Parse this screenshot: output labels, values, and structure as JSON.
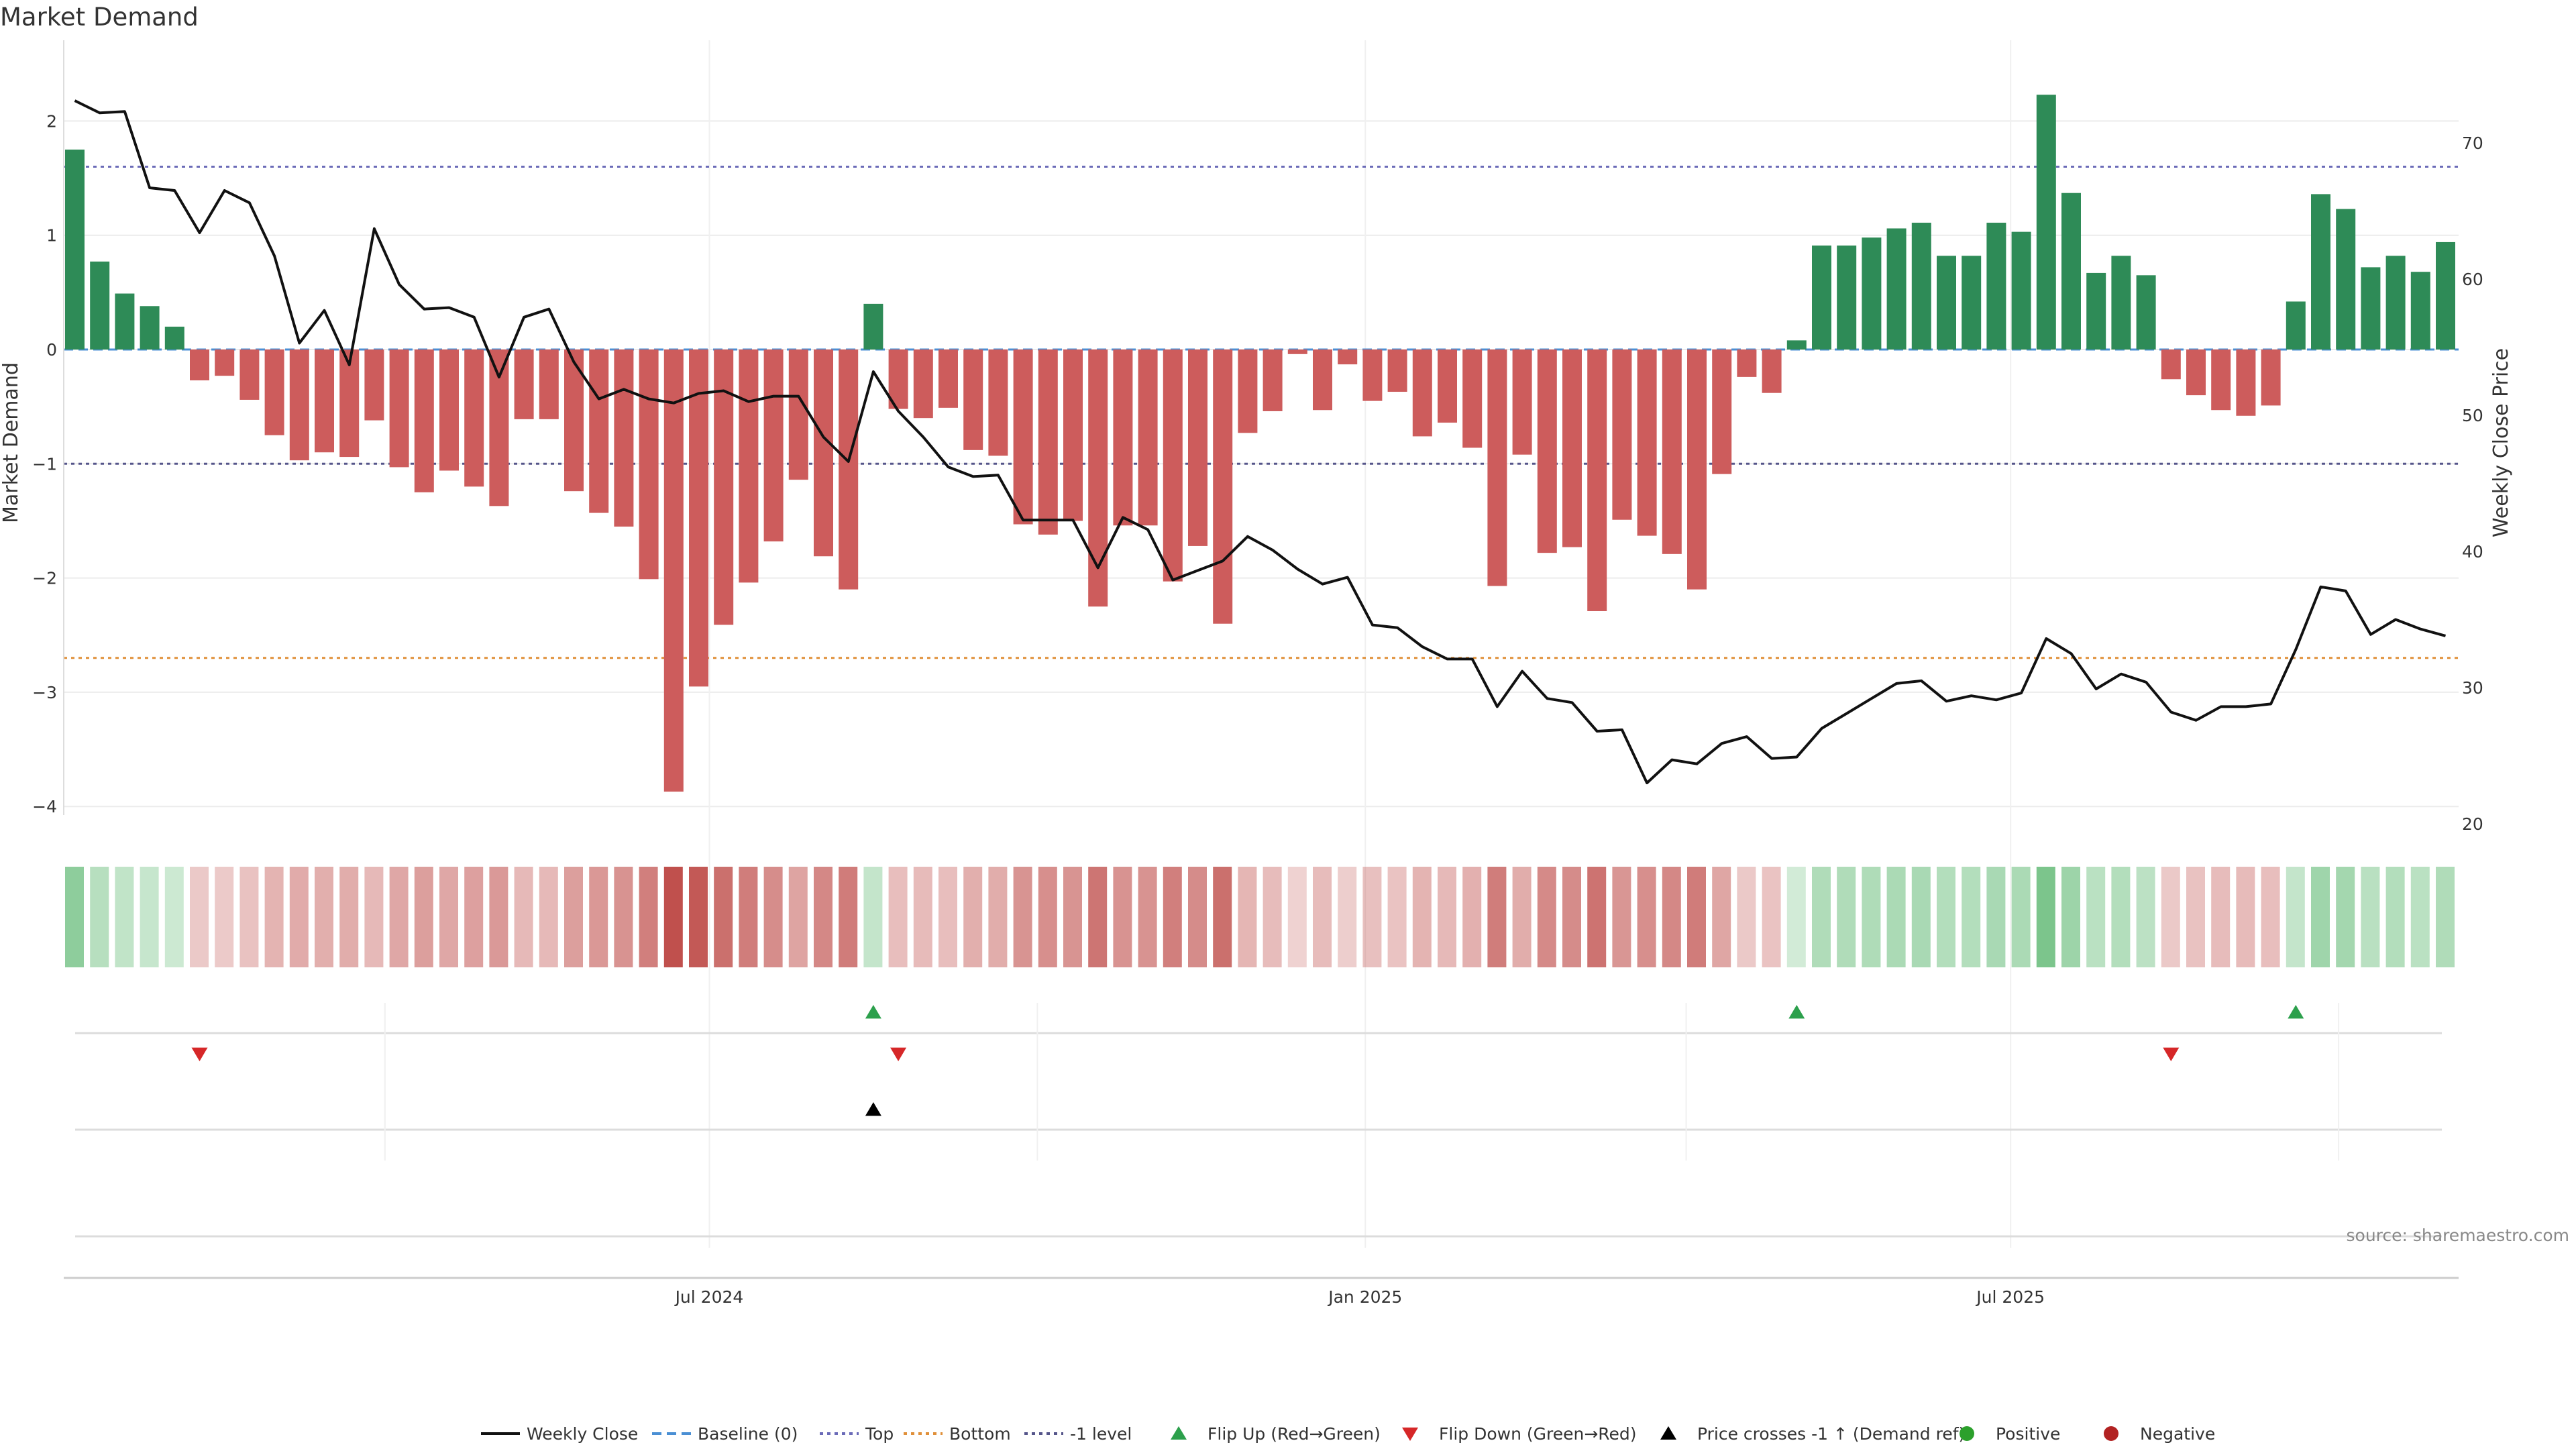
{
  "chart_data": {
    "type": "bar",
    "title": "Market Demand",
    "ylabel": "Market Demand",
    "y2label": "Weekly Close Price",
    "ylim": [
      -4.2,
      2.6
    ],
    "y2lim": [
      19.4,
      76.1
    ],
    "yticks": [
      2,
      1,
      0,
      -1,
      -2,
      -3,
      -4
    ],
    "y2ticks": [
      70,
      60,
      50,
      40,
      30,
      20
    ],
    "reference_lines": {
      "top": 1.6,
      "bottom": -2.7,
      "minus_one": -1,
      "baseline": 0
    },
    "x_start": "2024-01-05",
    "x_ticks": [
      {
        "label": "Jul 2024",
        "date": "2024-07-01"
      },
      {
        "label": "Jan 2025",
        "date": "2025-01-01"
      },
      {
        "label": "Jul 2025",
        "date": "2025-07-01"
      }
    ],
    "grid": true,
    "legend_position": "bottom-center",
    "demand": [
      1.75,
      0.77,
      0.49,
      0.38,
      0.2,
      -0.27,
      -0.23,
      -0.44,
      -0.75,
      -0.97,
      -0.9,
      -0.94,
      -0.62,
      -1.03,
      -1.25,
      -1.06,
      -1.2,
      -1.37,
      -0.61,
      -0.61,
      -1.24,
      -1.43,
      -1.55,
      -2.01,
      -3.87,
      -2.95,
      -2.41,
      -2.04,
      -1.68,
      -1.14,
      -1.81,
      -2.1,
      0.4,
      -0.52,
      -0.6,
      -0.51,
      -0.88,
      -0.93,
      -1.53,
      -1.62,
      -1.5,
      -2.25,
      -1.54,
      -1.54,
      -2.03,
      -1.72,
      -2.4,
      -0.73,
      -0.54,
      -0.04,
      -0.53,
      -0.13,
      -0.45,
      -0.37,
      -0.76,
      -0.64,
      -0.86,
      -2.07,
      -0.92,
      -1.78,
      -1.73,
      -2.29,
      -1.49,
      -1.63,
      -1.79,
      -2.1,
      -1.09,
      -0.24,
      -0.38,
      0.08,
      0.91,
      0.91,
      0.98,
      1.06,
      1.11,
      0.82,
      0.82,
      1.11,
      1.03,
      2.23,
      1.37,
      0.67,
      0.82,
      0.65,
      -0.26,
      -0.4,
      -0.53,
      -0.58,
      -0.49,
      0.42,
      1.36,
      1.23,
      0.72,
      0.82,
      0.68,
      0.94
    ],
    "weekly_close": [
      73.1,
      72.2,
      72.3,
      66.7,
      66.5,
      63.4,
      66.5,
      65.6,
      61.7,
      55.3,
      57.7,
      53.7,
      63.7,
      59.6,
      57.8,
      57.9,
      57.2,
      52.8,
      57.2,
      57.8,
      53.9,
      51.2,
      51.9,
      51.2,
      50.9,
      51.6,
      51.8,
      51.0,
      51.4,
      51.4,
      48.4,
      46.6,
      53.2,
      50.3,
      48.4,
      46.2,
      45.5,
      45.6,
      42.3,
      42.3,
      42.3,
      38.8,
      42.5,
      41.6,
      37.9,
      38.6,
      39.3,
      41.1,
      40.1,
      38.7,
      37.6,
      38.1,
      34.6,
      34.4,
      33.0,
      32.1,
      32.1,
      28.6,
      31.2,
      29.2,
      28.9,
      26.8,
      26.9,
      23.0,
      24.7,
      24.4,
      25.9,
      26.4,
      24.8,
      24.9,
      27.0,
      28.1,
      29.2,
      30.3,
      30.5,
      29.0,
      29.4,
      29.1,
      29.6,
      33.6,
      32.5,
      29.9,
      31.0,
      30.4,
      28.2,
      27.6,
      28.6,
      28.6,
      28.8,
      32.8,
      37.4,
      37.1,
      33.9,
      35.0,
      34.3,
      33.8
    ],
    "flip_up": [
      32,
      69,
      89
    ],
    "flip_down": [
      5,
      33,
      84
    ],
    "price_cross_up": [
      32
    ],
    "legend": [
      {
        "label": "Weekly Close",
        "kind": "line",
        "color": "#111111"
      },
      {
        "label": "Baseline (0)",
        "kind": "dash",
        "color": "#4a8fd4"
      },
      {
        "label": "Top",
        "kind": "dot",
        "color": "#6b6bb8"
      },
      {
        "label": "Bottom",
        "kind": "dot",
        "color": "#e0903a"
      },
      {
        "label": "-1 level",
        "kind": "dot",
        "color": "#55558a"
      },
      {
        "label": "Flip Up (Red→Green)",
        "kind": "tri-up",
        "color": "#2ca04c"
      },
      {
        "label": "Flip Down (Green→Red)",
        "kind": "tri-down",
        "color": "#d62728"
      },
      {
        "label": "Price crosses -1 ↑ (Demand ref)",
        "kind": "tri-up",
        "color": "#000000"
      },
      {
        "label": "Positive",
        "kind": "circle",
        "color": "#2ca02c"
      },
      {
        "label": "Negative",
        "kind": "circle",
        "color": "#b22222"
      }
    ],
    "source": "source: sharemaestro.com",
    "colors": {
      "positive": "#2e8b57",
      "negative": "#cd5c5c",
      "heat_positive": "#57b56b",
      "heat_negative": "#c0504d"
    }
  }
}
